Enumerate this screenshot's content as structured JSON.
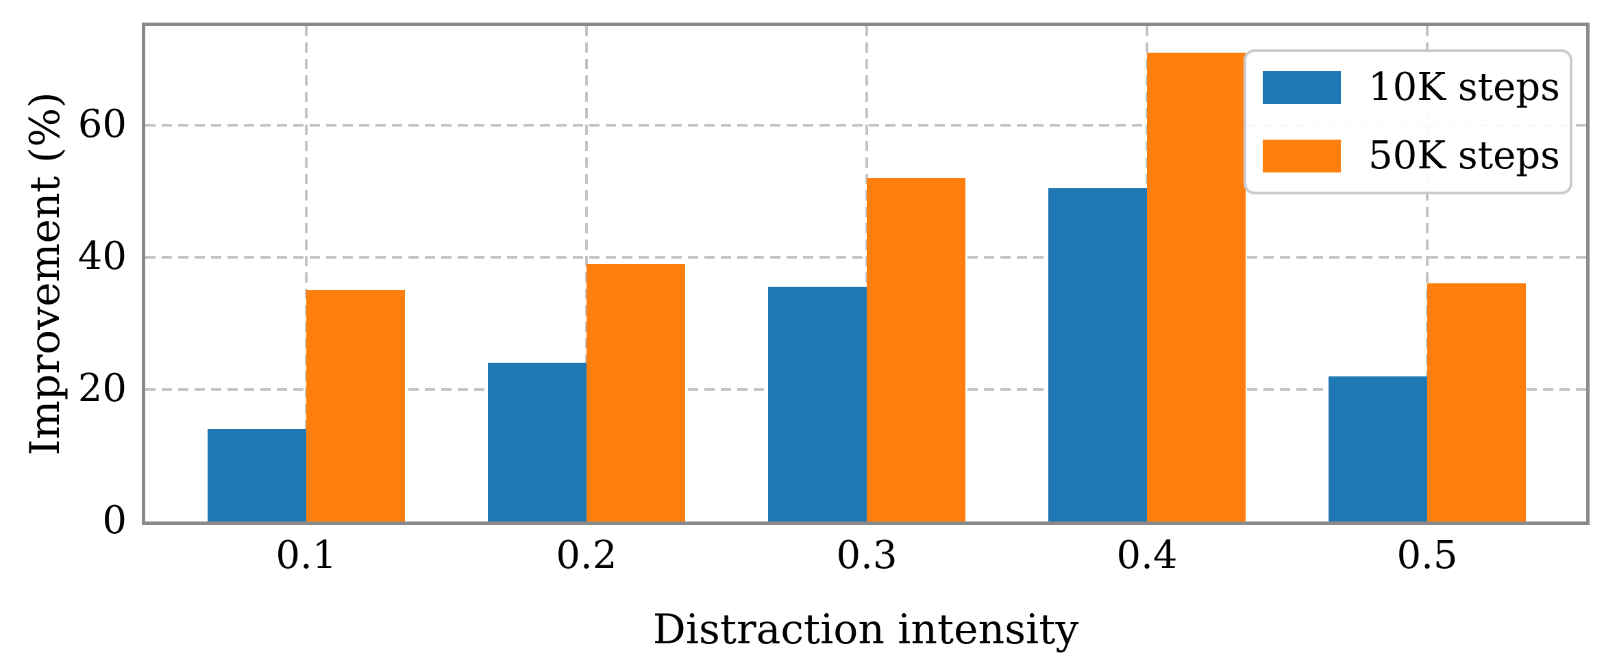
{
  "chart_data": {
    "type": "bar",
    "title": "",
    "categories": [
      "0.1",
      "0.2",
      "0.3",
      "0.4",
      "0.5"
    ],
    "series": [
      {
        "name": "10K steps",
        "color": "#1f77b4",
        "values": [
          14,
          24,
          35.5,
          50.5,
          22
        ]
      },
      {
        "name": "50K steps",
        "color": "#ff7f0e",
        "values": [
          35,
          39,
          52,
          71,
          36
        ]
      }
    ],
    "xlabel": "Distraction intensity",
    "ylabel": "Improvement (%)",
    "yticks": [
      0,
      20,
      40,
      60
    ],
    "ylim": [
      0,
      75
    ],
    "grid": "both-dashed",
    "legend_position": "upper right",
    "bar_group_gap": "none",
    "spine_color": "#8a8a8a",
    "grid_color": "#c4c4c4"
  }
}
